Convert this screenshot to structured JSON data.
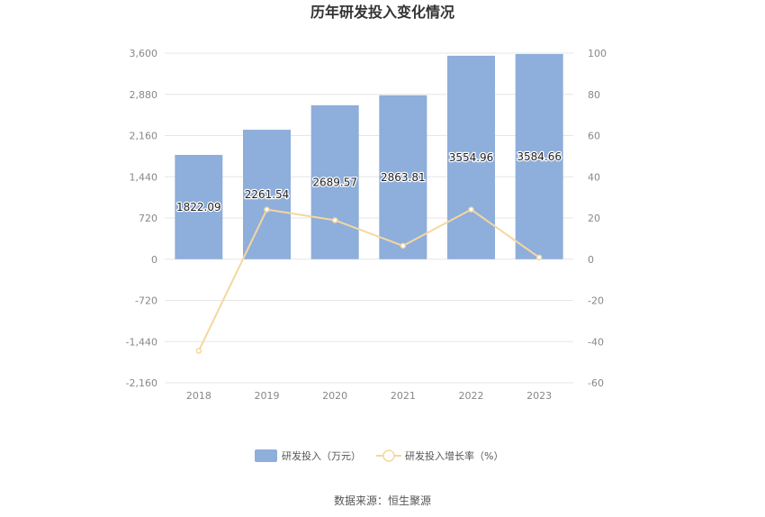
{
  "chart_data": {
    "type": "bar+line",
    "title": "历年研发投入变化情况",
    "categories": [
      "2018",
      "2019",
      "2020",
      "2021",
      "2022",
      "2023"
    ],
    "series": [
      {
        "name": "研发投入（万元）",
        "type": "bar",
        "axis": "left",
        "values": [
          1822.09,
          2261.54,
          2689.57,
          2863.81,
          3554.96,
          3584.66
        ],
        "labels": [
          "1822.09",
          "2261.54",
          "2689.57",
          "2863.81",
          "3554.96",
          "3584.66"
        ],
        "color": "#8eaedb"
      },
      {
        "name": "研发投入增长率（%）",
        "type": "line",
        "axis": "right",
        "values": [
          -44.5,
          24.1,
          18.9,
          6.5,
          24.1,
          0.8
        ],
        "color": "#f5d79e"
      }
    ],
    "y_left": {
      "ticks": [
        "3,600",
        "2,880",
        "2,160",
        "1,440",
        "720",
        "0",
        "-720",
        "-1,440",
        "-2,160"
      ],
      "ylim": [
        -2160,
        3600
      ]
    },
    "y_right": {
      "ticks": [
        "100",
        "80",
        "60",
        "40",
        "20",
        "0",
        "-20",
        "-40",
        "-60"
      ],
      "ylim": [
        -60,
        100
      ]
    },
    "grid": true,
    "legend_position": "bottom",
    "source": "数据来源：恒生聚源"
  }
}
